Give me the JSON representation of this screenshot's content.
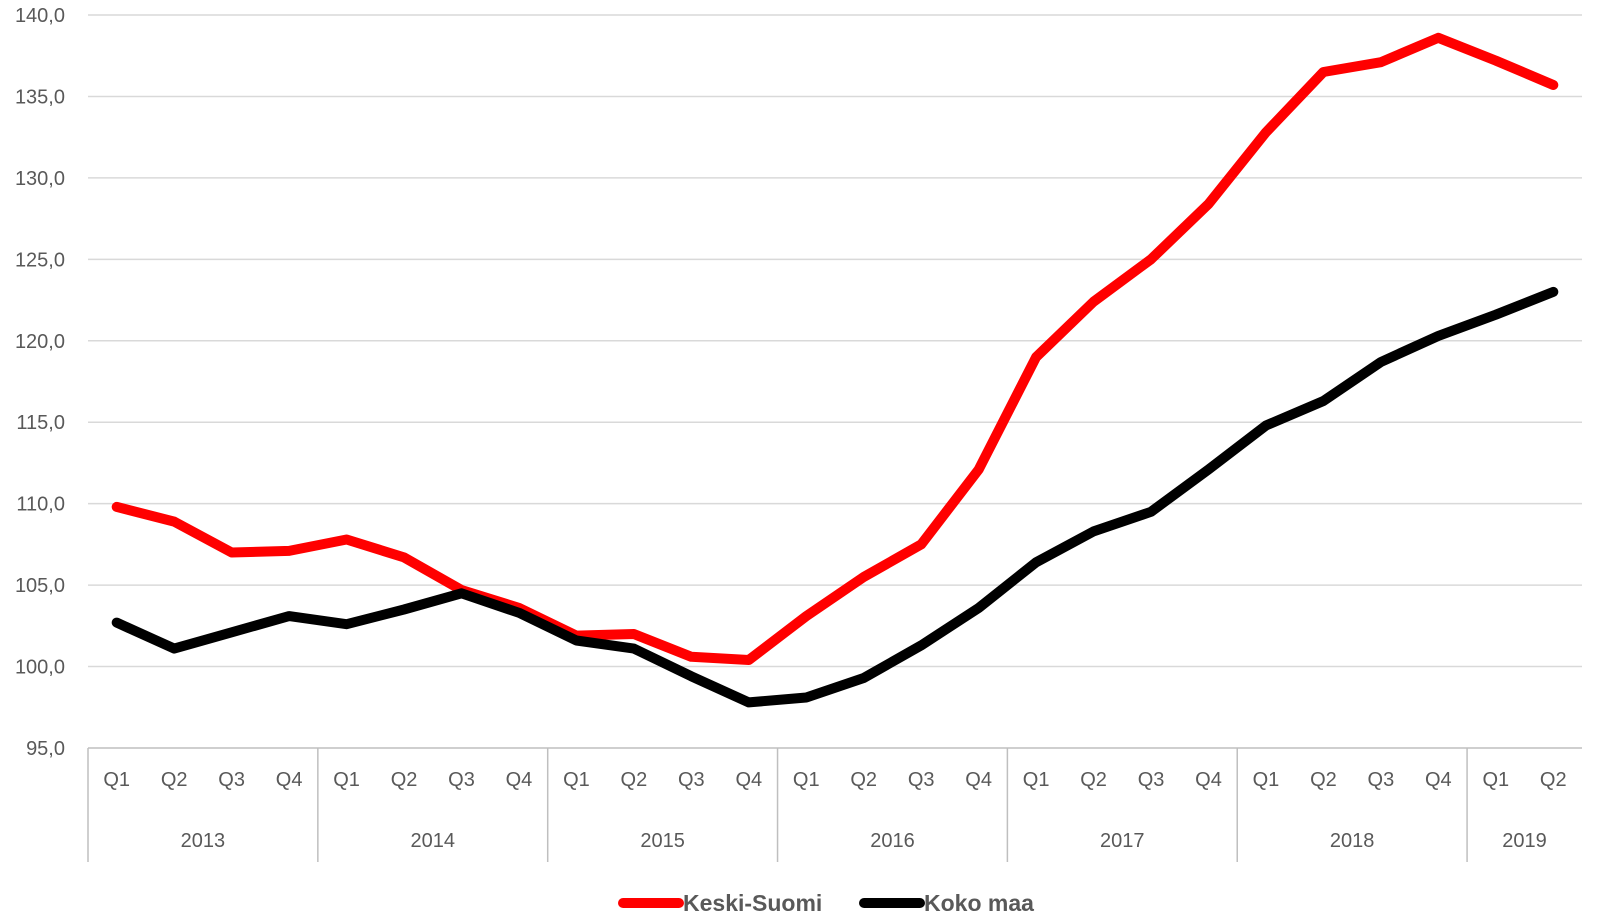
{
  "chart_data": {
    "type": "line",
    "title": "",
    "xlabel": "",
    "ylabel": "",
    "ylim": [
      95,
      140
    ],
    "yticks": [
      "95,0",
      "100,0",
      "105,0",
      "110,0",
      "115,0",
      "120,0",
      "125,0",
      "130,0",
      "135,0",
      "140,0"
    ],
    "grid": true,
    "legend_position": "bottom",
    "categories": [
      "2013 Q1",
      "2013 Q2",
      "2013 Q3",
      "2013 Q4",
      "2014 Q1",
      "2014 Q2",
      "2014 Q3",
      "2014 Q4",
      "2015 Q1",
      "2015 Q2",
      "2015 Q3",
      "2015 Q4",
      "2016 Q1",
      "2016 Q2",
      "2016 Q3",
      "2016 Q4",
      "2017 Q1",
      "2017 Q2",
      "2017 Q3",
      "2017 Q4",
      "2018 Q1",
      "2018 Q2",
      "2018 Q3",
      "2018 Q4",
      "2019 Q1",
      "2019 Q2"
    ],
    "quarters": [
      "Q1",
      "Q2",
      "Q3",
      "Q4",
      "Q1",
      "Q2",
      "Q3",
      "Q4",
      "Q1",
      "Q2",
      "Q3",
      "Q4",
      "Q1",
      "Q2",
      "Q3",
      "Q4",
      "Q1",
      "Q2",
      "Q3",
      "Q4",
      "Q1",
      "Q2",
      "Q3",
      "Q4",
      "Q1",
      "Q2"
    ],
    "years": [
      {
        "label": "2013",
        "quarters": 4
      },
      {
        "label": "2014",
        "quarters": 4
      },
      {
        "label": "2015",
        "quarters": 4
      },
      {
        "label": "2016",
        "quarters": 4
      },
      {
        "label": "2017",
        "quarters": 4
      },
      {
        "label": "2018",
        "quarters": 4
      },
      {
        "label": "2019",
        "quarters": 2
      }
    ],
    "series": [
      {
        "name": "Keski-Suomi",
        "color": "#ff0000",
        "values": [
          109.8,
          108.9,
          107.0,
          107.1,
          107.8,
          106.7,
          104.7,
          103.6,
          101.9,
          102.0,
          100.6,
          100.4,
          103.1,
          105.5,
          107.5,
          112.1,
          119.0,
          122.4,
          125.0,
          128.4,
          132.8,
          136.5,
          137.1,
          138.6,
          137.2,
          135.7
        ]
      },
      {
        "name": "Koko maa",
        "color": "#000000",
        "values": [
          102.7,
          101.1,
          102.1,
          103.1,
          102.6,
          103.5,
          104.5,
          103.3,
          101.6,
          101.1,
          99.4,
          97.8,
          98.1,
          99.3,
          101.3,
          103.6,
          106.4,
          108.3,
          109.5,
          112.1,
          114.8,
          116.3,
          118.7,
          120.3,
          121.6,
          123.0
        ]
      }
    ]
  }
}
